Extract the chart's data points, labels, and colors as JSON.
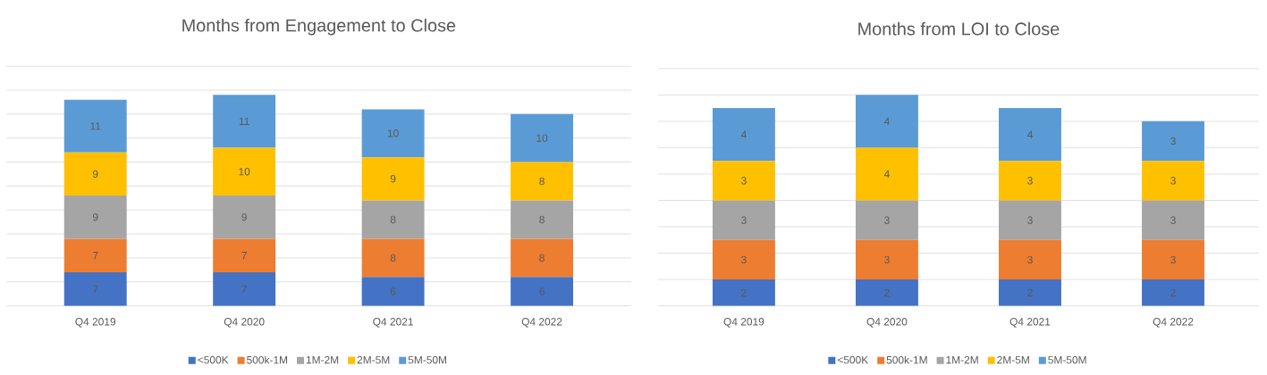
{
  "chart_data": [
    {
      "type": "bar",
      "stacked": true,
      "title": "Months from Engagement to Close",
      "categories": [
        "Q4 2019",
        "Q4 2020",
        "Q4 2021",
        "Q4 2022"
      ],
      "series": [
        {
          "name": "<500K",
          "color": "#4472c4",
          "values": [
            7,
            7,
            6,
            6
          ]
        },
        {
          "name": "500k-1M",
          "color": "#ed7d31",
          "values": [
            7,
            7,
            8,
            8
          ]
        },
        {
          "name": "1M-2M",
          "color": "#a5a5a5",
          "values": [
            9,
            9,
            8,
            8
          ]
        },
        {
          "name": "2M-5M",
          "color": "#ffc000",
          "values": [
            9,
            10,
            9,
            8
          ]
        },
        {
          "name": "5M-50M",
          "color": "#5b9bd5",
          "values": [
            11,
            11,
            10,
            10
          ]
        }
      ],
      "grid": "y",
      "legend": "bottom",
      "data_labels": true,
      "tick_labels": "x"
    },
    {
      "type": "bar",
      "stacked": true,
      "title": "Months from LOI to Close",
      "categories": [
        "Q4 2019",
        "Q4 2020",
        "Q4 2021",
        "Q4 2022"
      ],
      "series": [
        {
          "name": "<500K",
          "color": "#4472c4",
          "values": [
            2,
            2,
            2,
            2
          ]
        },
        {
          "name": "500k-1M",
          "color": "#ed7d31",
          "values": [
            3,
            3,
            3,
            3
          ]
        },
        {
          "name": "1M-2M",
          "color": "#a5a5a5",
          "values": [
            3,
            3,
            3,
            3
          ]
        },
        {
          "name": "2M-5M",
          "color": "#ffc000",
          "values": [
            3,
            4,
            3,
            3
          ]
        },
        {
          "name": "5M-50M",
          "color": "#5b9bd5",
          "values": [
            4,
            4,
            4,
            3
          ]
        }
      ],
      "grid": "y",
      "legend": "bottom",
      "data_labels": true,
      "tick_labels": "x"
    }
  ]
}
